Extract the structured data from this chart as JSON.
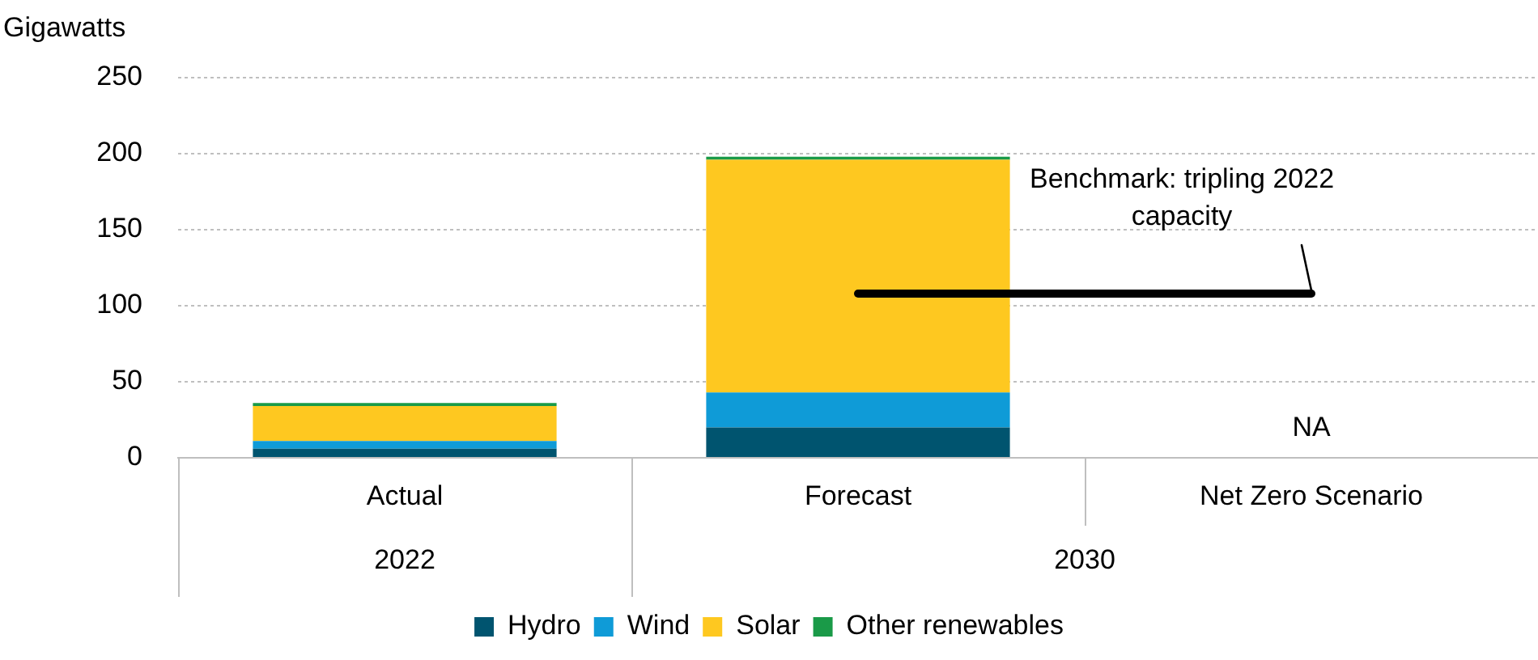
{
  "chart_data": {
    "type": "bar",
    "stacked": true,
    "ylabel": "Gigawatts",
    "categories": [
      "Actual",
      "Forecast",
      "Net Zero Scenario"
    ],
    "series": [
      {
        "name": "Hydro",
        "color": "#00546f",
        "values": [
          6,
          20,
          null
        ]
      },
      {
        "name": "Wind",
        "color": "#0f9bd7",
        "values": [
          5,
          23,
          null
        ]
      },
      {
        "name": "Solar",
        "color": "#fec820",
        "values": [
          23,
          153,
          null
        ]
      },
      {
        "name": "Other renewables",
        "color": "#1a9a48",
        "values": [
          2,
          2,
          null
        ]
      }
    ],
    "ylim": [
      0,
      250
    ],
    "yticks": [
      0,
      50,
      100,
      150,
      200,
      250
    ],
    "grid": "y",
    "legend": "bottom",
    "ref_lines": [
      {
        "axis": "y",
        "value": 108,
        "label": "Benchmark: tripling 2022 capacity",
        "color": "#000000"
      }
    ],
    "annotations": [
      "NA",
      "2022",
      "2030"
    ]
  }
}
